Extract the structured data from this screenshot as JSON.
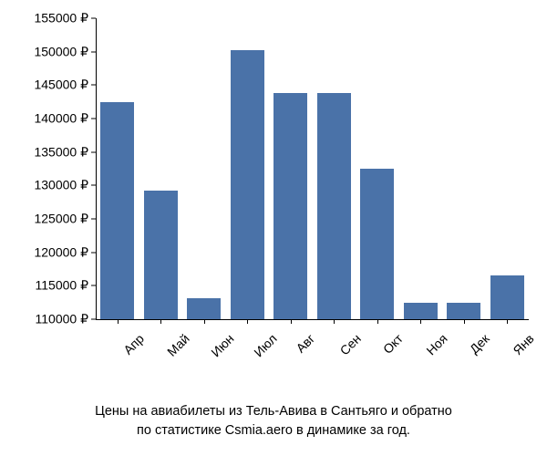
{
  "chart": {
    "type": "bar",
    "categories": [
      "Апр",
      "Май",
      "Июн",
      "Июл",
      "Авг",
      "Сен",
      "Окт",
      "Ноя",
      "Дек",
      "Янв"
    ],
    "values": [
      142500,
      129200,
      113200,
      150200,
      143800,
      143800,
      132500,
      112500,
      112500,
      116500
    ],
    "bar_color": "#4a72a8",
    "background_color": "#ffffff",
    "y_axis": {
      "min": 110000,
      "max": 155000,
      "tick_step": 5000,
      "ticks": [
        110000,
        115000,
        120000,
        125000,
        130000,
        135000,
        140000,
        145000,
        150000,
        155000
      ],
      "tick_labels": [
        "110000 ₽",
        "115000 ₽",
        "120000 ₽",
        "125000 ₽",
        "130000 ₽",
        "135000 ₽",
        "140000 ₽",
        "145000 ₽",
        "150000 ₽",
        "155000 ₽"
      ],
      "label_fontsize": 14,
      "label_color": "#000000"
    },
    "x_axis": {
      "label_fontsize": 14,
      "label_color": "#000000",
      "label_rotation": -45
    },
    "bar_width_ratio": 0.78,
    "axis_color": "#000000"
  },
  "caption": {
    "line1": "Цены на авиабилеты из Тель-Авива в Сантьяго и обратно",
    "line2": "по статистике Csmia.aero в динамике за год.",
    "fontsize": 14.5,
    "color": "#000000"
  }
}
